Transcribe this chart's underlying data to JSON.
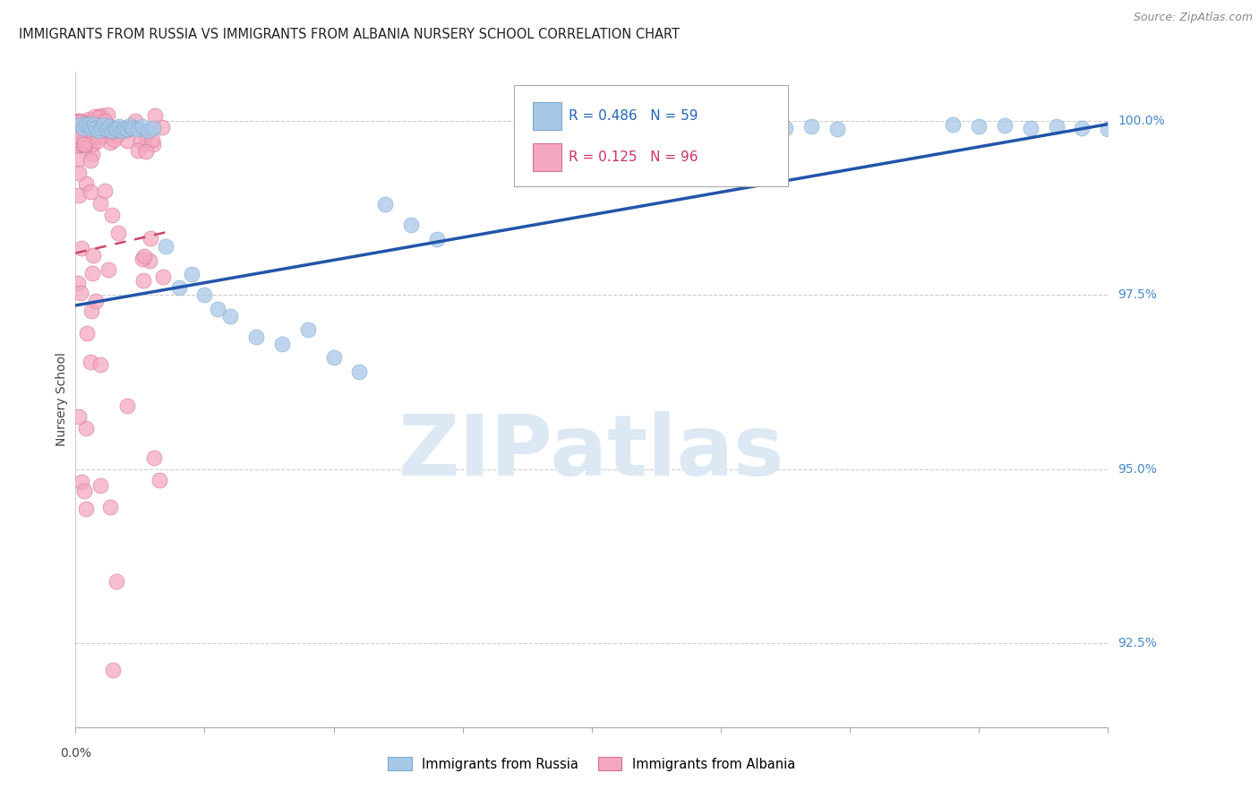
{
  "title": "IMMIGRANTS FROM RUSSIA VS IMMIGRANTS FROM ALBANIA NURSERY SCHOOL CORRELATION CHART",
  "source": "Source: ZipAtlas.com",
  "ylabel": "Nursery School",
  "ytick_labels": [
    "100.0%",
    "97.5%",
    "95.0%",
    "92.5%"
  ],
  "ytick_values": [
    1.0,
    0.975,
    0.95,
    0.925
  ],
  "xlim": [
    0.0,
    0.4
  ],
  "ylim": [
    0.913,
    1.007
  ],
  "russia_R": 0.486,
  "russia_N": 59,
  "albania_R": 0.125,
  "albania_N": 96,
  "russia_color": "#a8c8e8",
  "albania_color": "#f4a8c0",
  "russia_edge_color": "#7aaace",
  "albania_edge_color": "#d07090",
  "russia_line_color": "#2255aa",
  "albania_line_color": "#cc4466",
  "legend_label_russia": "Immigrants from Russia",
  "legend_label_albania": "Immigrants from Albania",
  "watermark": "ZIPatlas",
  "watermark_color": "#dce8f4"
}
